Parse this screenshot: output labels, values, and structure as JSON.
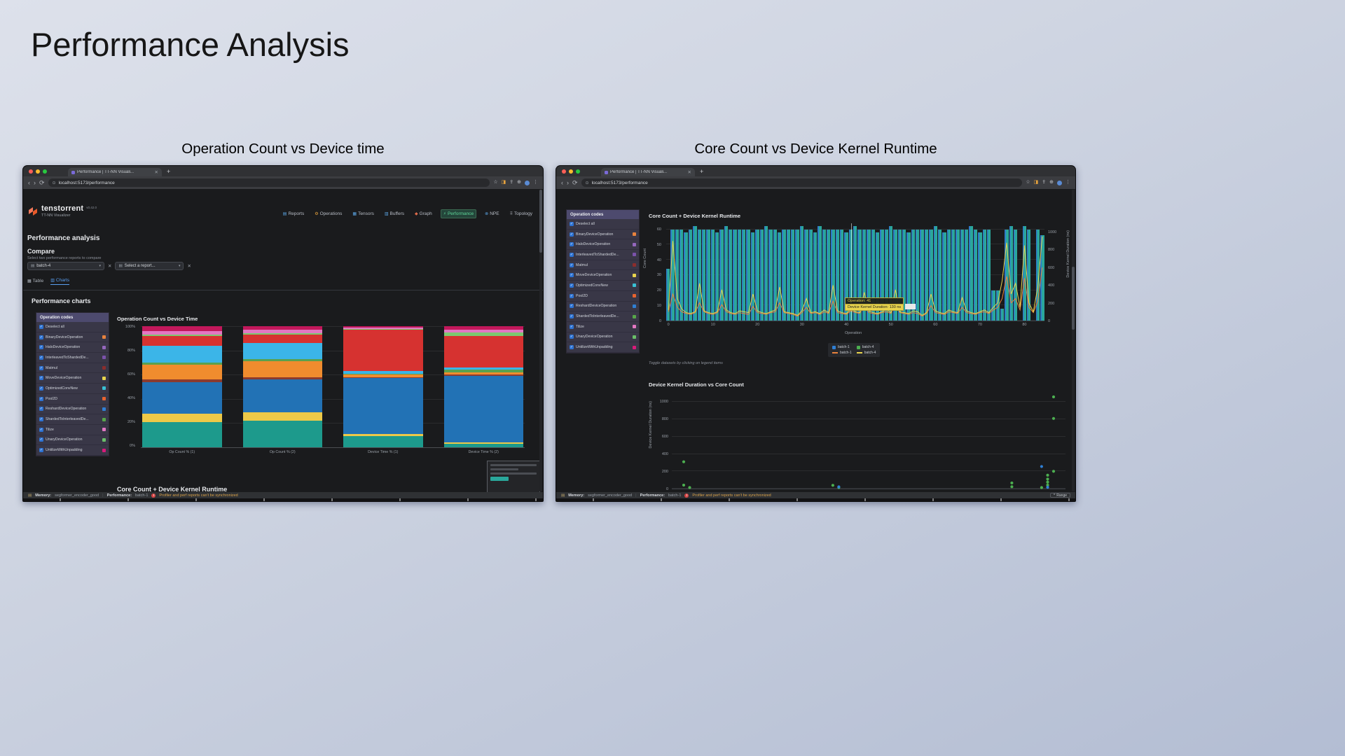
{
  "slide": {
    "title": "Performance Analysis",
    "caption_left": "Operation Count vs Device time",
    "caption_right": "Core Count vs Device Kernel Runtime"
  },
  "chrome": {
    "tab_title": "Performance | TT-NN Visuali...",
    "url": "localhost:5173/performance"
  },
  "app": {
    "brand": "tenstorrent",
    "brand_sub": "TT-NN Visualizer",
    "brand_version": "v0.42.0",
    "nav": [
      {
        "label": "Reports",
        "icon_name": "reports-icon",
        "glyph": "▤",
        "color": "#5aa2e0"
      },
      {
        "label": "Operations",
        "icon_name": "operations-icon",
        "glyph": "⚙",
        "color": "#e8a33d"
      },
      {
        "label": "Tensors",
        "icon_name": "tensors-icon",
        "glyph": "▦",
        "color": "#5aa2e0"
      },
      {
        "label": "Buffers",
        "icon_name": "buffers-icon",
        "glyph": "▥",
        "color": "#5aa2e0"
      },
      {
        "label": "Graph",
        "icon_name": "graph-icon",
        "glyph": "◆",
        "color": "#e06c4b"
      },
      {
        "label": "Performance",
        "icon_name": "performance-icon",
        "glyph": "⚡",
        "color": "#5fd79a",
        "active": true
      },
      {
        "label": "NPE",
        "icon_name": "npe-icon",
        "glyph": "⊗",
        "color": "#5aa2e0"
      },
      {
        "label": "Topology",
        "icon_name": "topology-icon",
        "glyph": "⠿",
        "color": "#b9bec7"
      }
    ],
    "page_title": "Performance analysis",
    "compare": {
      "label": "Compare",
      "hint": "Select two performance reports to compare",
      "select1": "batch-4",
      "select2": "Select a report..."
    },
    "tabs": {
      "table": "Table",
      "charts": "Charts"
    },
    "performance_charts_heading": "Performance charts",
    "core_count_heading": "Core Count + Device Kernel Runtime"
  },
  "operation_codes": {
    "header": "Operation codes",
    "items": [
      {
        "label": "Deselect all"
      },
      {
        "label": "BinaryDeviceOperation",
        "color": "#e8823d"
      },
      {
        "label": "HaloDeviceOperation",
        "color": "#9467bd"
      },
      {
        "label": "InterleavedToShardedDe...",
        "color": "#7b52ab"
      },
      {
        "label": "Matmul",
        "color": "#8c2d2d"
      },
      {
        "label": "MoveDeviceOperation",
        "color": "#e8d44d"
      },
      {
        "label": "OptimizedConvNew",
        "color": "#39c0d4"
      },
      {
        "label": "Pool2D",
        "color": "#e8632f"
      },
      {
        "label": "ReshardDeviceOperation",
        "color": "#2f7fd4"
      },
      {
        "label": "ShardedToInterleavedDe...",
        "color": "#57a64a"
      },
      {
        "label": "Tilize",
        "color": "#e377c2"
      },
      {
        "label": "UnaryDeviceOperation",
        "color": "#6abf69"
      },
      {
        "label": "UntilizeWithUnpadding",
        "color": "#d81b7a"
      }
    ]
  },
  "statusbar": {
    "memory_label": "Memory:",
    "memory_value": "segformer_encoder_good",
    "performance_label": "Performance:",
    "performance_value": "batch-1",
    "warning": "Profiler and perf reports can't be synchronized",
    "range_label": "Range"
  },
  "tooltip": {
    "line1": "Operation: 41",
    "line2": "Device Kernel Duration: 130 ns"
  },
  "legend": {
    "hint": "Toggle datasets by clicking on legend items",
    "items": [
      {
        "label": "batch-1",
        "color": "#2f7fd4",
        "type": "square"
      },
      {
        "label": "batch-4",
        "color": "#4caf50",
        "type": "square"
      },
      {
        "label": "batch-1",
        "color": "#e8823d",
        "type": "line"
      },
      {
        "label": "batch-4",
        "color": "#e8d44d",
        "type": "line"
      }
    ]
  },
  "chart_data": [
    {
      "id": "op-count-vs-device-time",
      "type": "bar",
      "subtype": "stacked-percent",
      "title": "Operation Count vs Device Time",
      "categories": [
        "Op Count % (1)",
        "Op Count % (2)",
        "Device Time % (1)",
        "Device Time % (2)"
      ],
      "yticks": [
        "0%",
        "20%",
        "40%",
        "60%",
        "80%",
        "100%"
      ],
      "ylim": [
        0,
        100
      ],
      "series": [
        {
          "name": "teal",
          "color": "#1d9a8c",
          "values": [
            21,
            22,
            9,
            3
          ]
        },
        {
          "name": "yellow",
          "color": "#edc948",
          "values": [
            7,
            7,
            2,
            1
          ]
        },
        {
          "name": "blue",
          "color": "#2272b5",
          "values": [
            26,
            27,
            46,
            55
          ]
        },
        {
          "name": "maroon",
          "color": "#8c3b2e",
          "values": [
            2,
            2,
            1,
            1
          ]
        },
        {
          "name": "orange",
          "color": "#f08c2e",
          "values": [
            12,
            13,
            2,
            2
          ]
        },
        {
          "name": "green",
          "color": "#59a14f",
          "values": [
            2,
            2,
            1,
            2
          ]
        },
        {
          "name": "sky",
          "color": "#3bb5e8",
          "values": [
            14,
            13,
            2,
            2
          ]
        },
        {
          "name": "red",
          "color": "#d63230",
          "values": [
            8,
            7,
            34,
            26
          ]
        },
        {
          "name": "lime",
          "color": "#7bc96f",
          "values": [
            1,
            1,
            1,
            3
          ]
        },
        {
          "name": "pink",
          "color": "#e377c2",
          "values": [
            3,
            3,
            1,
            2
          ]
        },
        {
          "name": "magenta",
          "color": "#c2185b",
          "values": [
            4,
            3,
            1,
            3
          ]
        }
      ]
    },
    {
      "id": "core-count-device-kernel-runtime",
      "type": "bar",
      "subtype": "bar-line-dual-axis",
      "title": "Core Count + Device Kernel Runtime",
      "xlabel": "Operation",
      "ylabel_left": "Core Count",
      "ylabel_right": "Device Kernel Duration (ns)",
      "yticks_left": [
        0,
        10,
        20,
        30,
        40,
        50,
        60
      ],
      "yticks_right": [
        0,
        200,
        400,
        600,
        800,
        1000
      ],
      "xticks": [
        0,
        10,
        20,
        30,
        40,
        50,
        60,
        70,
        80
      ],
      "ylim_left": [
        0,
        64
      ],
      "ylim_right": [
        0,
        1100
      ],
      "bars": {
        "name": "core count (batch-1 + batch-4)",
        "color": "#2aa79b",
        "values": [
          34,
          60,
          60,
          60,
          58,
          60,
          62,
          60,
          60,
          60,
          60,
          58,
          60,
          62,
          60,
          60,
          60,
          60,
          60,
          58,
          60,
          60,
          62,
          60,
          60,
          58,
          60,
          60,
          60,
          60,
          62,
          60,
          60,
          58,
          62,
          60,
          60,
          60,
          60,
          60,
          58,
          60,
          62,
          60,
          60,
          60,
          60,
          58,
          60,
          60,
          62,
          60,
          60,
          60,
          58,
          60,
          60,
          60,
          60,
          60,
          62,
          60,
          58,
          60,
          60,
          60,
          60,
          60,
          62,
          60,
          58,
          60,
          60,
          20,
          20,
          8,
          60,
          62,
          60,
          0,
          62,
          60,
          0,
          60,
          56
        ]
      },
      "lines": [
        {
          "name": "batch-1",
          "color": "#e8823d",
          "values": [
            100,
            300,
            150,
            100,
            80,
            70,
            90,
            200,
            100,
            80,
            70,
            90,
            180,
            100,
            80,
            70,
            90,
            80,
            70,
            160,
            90,
            80,
            70,
            90,
            100,
            200,
            90,
            80,
            70,
            50,
            90,
            150,
            80,
            90,
            70,
            100,
            80,
            220,
            90,
            80,
            70,
            110,
            90,
            80,
            180,
            90,
            80,
            70,
            90,
            100,
            80,
            200,
            90,
            80,
            70,
            90,
            80,
            50,
            80,
            170,
            90,
            80,
            70,
            100,
            90,
            80,
            150,
            90,
            80,
            70,
            90,
            100,
            80,
            120,
            150,
            250,
            500,
            200,
            250,
            120,
            480,
            150,
            90,
            220,
            600
          ]
        },
        {
          "name": "batch-4",
          "color": "#e8d44d",
          "values": [
            120,
            900,
            250,
            130,
            90,
            80,
            100,
            420,
            110,
            90,
            80,
            100,
            350,
            120,
            90,
            80,
            110,
            100,
            90,
            300,
            110,
            90,
            80,
            100,
            120,
            380,
            100,
            90,
            80,
            60,
            110,
            250,
            90,
            100,
            80,
            120,
            90,
            400,
            110,
            90,
            80,
            130,
            100,
            90,
            320,
            110,
            90,
            80,
            100,
            120,
            90,
            350,
            100,
            90,
            80,
            110,
            100,
            60,
            90,
            300,
            110,
            90,
            80,
            120,
            100,
            90,
            260,
            110,
            90,
            80,
            100,
            120,
            90,
            150,
            200,
            450,
            880,
            300,
            420,
            150,
            850,
            200,
            100,
            380,
            950
          ]
        }
      ]
    },
    {
      "id": "device-kernel-duration-vs-core-count",
      "type": "scatter",
      "title": "Device Kernel Duration vs Core Count",
      "ylabel": "Device Kernel Duration (ns)",
      "yticks": [
        0,
        200,
        400,
        600,
        800,
        1000
      ],
      "xlim": [
        0,
        66
      ],
      "ylim": [
        0,
        1100
      ],
      "series": [
        {
          "name": "batch-4",
          "color": "#4caf50",
          "points": [
            [
              2,
              310
            ],
            [
              2,
              40
            ],
            [
              3,
              12
            ],
            [
              27,
              38
            ],
            [
              28,
              12
            ],
            [
              57,
              22
            ],
            [
              57,
              65
            ],
            [
              62,
              12
            ],
            [
              63,
              40
            ],
            [
              63,
              75
            ],
            [
              63,
              110
            ],
            [
              63,
              155
            ],
            [
              64,
              200
            ],
            [
              64,
              810
            ],
            [
              64,
              1060
            ]
          ]
        },
        {
          "name": "batch-1",
          "color": "#2f7fd4",
          "points": [
            [
              28,
              20
            ],
            [
              62,
              255
            ],
            [
              63,
              15
            ]
          ]
        }
      ]
    }
  ]
}
